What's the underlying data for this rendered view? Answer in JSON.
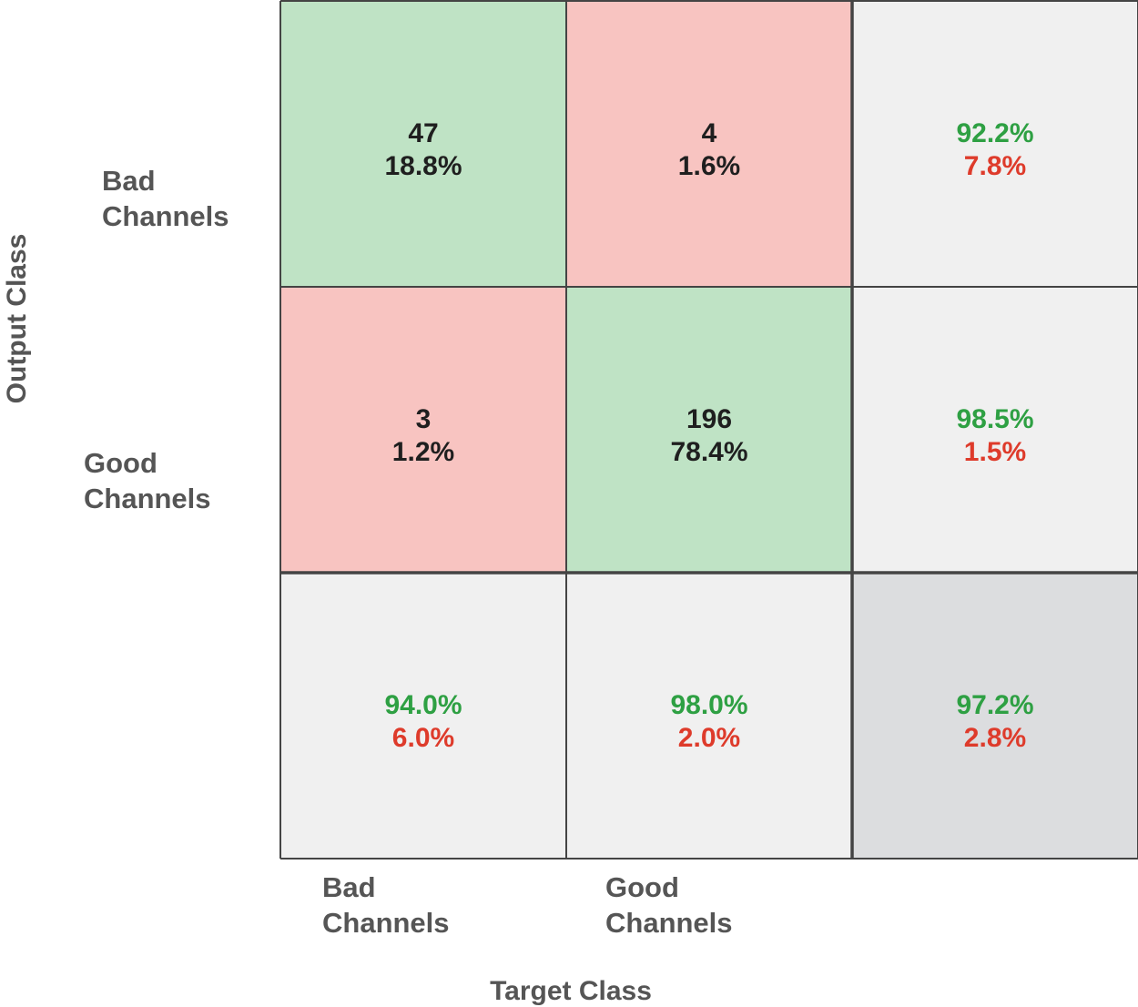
{
  "chart_data": {
    "type": "confusion_matrix",
    "title": "",
    "xlabel": "Target Class",
    "ylabel": "Output Class",
    "x_categories": [
      [
        "Bad",
        "Channels"
      ],
      [
        "Good",
        "Channels"
      ]
    ],
    "y_categories": [
      [
        "Bad",
        "Channels"
      ],
      [
        "Good",
        "Channels"
      ]
    ],
    "matrix": [
      [
        {
          "count": "47",
          "pct": "18.8%",
          "kind": "correct"
        },
        {
          "count": "4",
          "pct": "1.6%",
          "kind": "error"
        },
        {
          "good": "92.2%",
          "bad": "7.8%",
          "kind": "summary"
        }
      ],
      [
        {
          "count": "3",
          "pct": "1.2%",
          "kind": "error"
        },
        {
          "count": "196",
          "pct": "78.4%",
          "kind": "correct"
        },
        {
          "good": "98.5%",
          "bad": "1.5%",
          "kind": "summary"
        }
      ],
      [
        {
          "good": "94.0%",
          "bad": "6.0%",
          "kind": "summary"
        },
        {
          "good": "98.0%",
          "bad": "2.0%",
          "kind": "summary"
        },
        {
          "good": "97.2%",
          "bad": "2.8%",
          "kind": "total"
        }
      ]
    ],
    "colors": {
      "correct": "#bfe3c5",
      "error": "#f8c4c1",
      "summary": "#f0f0f0",
      "total": "#dcdddf",
      "good_text": "#2ea043",
      "bad_text": "#de3b2b",
      "count_text": "#1f1f1f",
      "border": "#444444"
    }
  }
}
